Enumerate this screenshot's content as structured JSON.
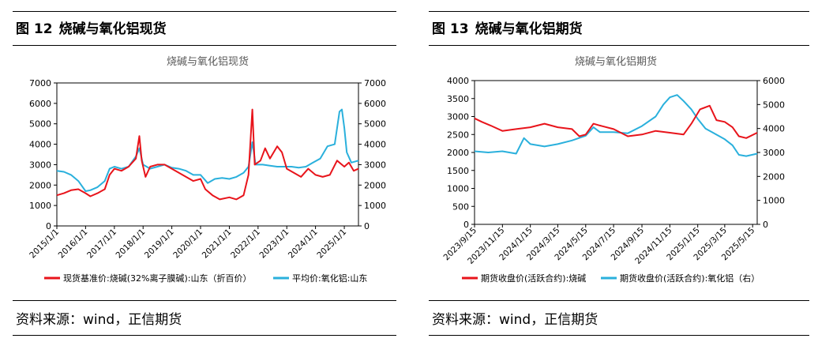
{
  "panels": [
    {
      "fig_num": "图 12",
      "fig_title": "烧碱与氧化铝现货",
      "source": "资料来源：wind，正信期货"
    },
    {
      "fig_num": "图 13",
      "fig_title": "烧碱与氧化铝期货",
      "source": "资料来源：wind，正信期货"
    }
  ],
  "chart_data": [
    {
      "type": "line",
      "title": "烧碱与氧化铝现货",
      "x_axis": "date",
      "xticks": [
        "2015/1/1",
        "2016/1/1",
        "2017/1/1",
        "2018/1/1",
        "2019/1/1",
        "2020/1/1",
        "2021/1/1",
        "2022/1/1",
        "2023/1/1",
        "2024/1/1",
        "2025/1/1"
      ],
      "x_range": [
        "2015/1/1",
        "2025/6/30"
      ],
      "ylim_left": [
        0,
        7000
      ],
      "yticks_left": [
        "0",
        "1000",
        "2000",
        "3000",
        "4000",
        "5000",
        "6000",
        "7000"
      ],
      "ylim_right": [
        0,
        7000
      ],
      "yticks_right": [
        "0",
        "1000",
        "2000",
        "3000",
        "4000",
        "5000",
        "6000",
        "7000"
      ],
      "grid": false,
      "legend_position": "bottom",
      "colors": {
        "series1": "#e8141b",
        "series2": "#2ab0dc"
      },
      "series": [
        {
          "name": "现货基准价:烧碱(32%离子膜碱):山东（折百价）",
          "axis": "left",
          "points": [
            [
              "2015/1/1",
              1500
            ],
            [
              "2015/4/1",
              1600
            ],
            [
              "2015/7/1",
              1750
            ],
            [
              "2015/10/1",
              1800
            ],
            [
              "2016/1/1",
              1600
            ],
            [
              "2016/3/1",
              1450
            ],
            [
              "2016/6/1",
              1600
            ],
            [
              "2016/9/1",
              1800
            ],
            [
              "2016/11/1",
              2500
            ],
            [
              "2017/1/1",
              2800
            ],
            [
              "2017/4/1",
              2700
            ],
            [
              "2017/7/1",
              2900
            ],
            [
              "2017/10/1",
              3300
            ],
            [
              "2017/11/15",
              4400
            ],
            [
              "2017/12/15",
              3200
            ],
            [
              "2018/2/1",
              2400
            ],
            [
              "2018/4/1",
              2900
            ],
            [
              "2018/7/1",
              3000
            ],
            [
              "2018/10/1",
              3000
            ],
            [
              "2019/1/1",
              2800
            ],
            [
              "2019/4/1",
              2600
            ],
            [
              "2019/7/1",
              2400
            ],
            [
              "2019/10/1",
              2200
            ],
            [
              "2020/1/1",
              2300
            ],
            [
              "2020/3/1",
              1800
            ],
            [
              "2020/6/1",
              1500
            ],
            [
              "2020/9/1",
              1300
            ],
            [
              "2021/1/1",
              1400
            ],
            [
              "2021/4/1",
              1300
            ],
            [
              "2021/7/1",
              1500
            ],
            [
              "2021/9/1",
              2500
            ],
            [
              "2021/10/20",
              5700
            ],
            [
              "2021/11/20",
              3000
            ],
            [
              "2022/2/1",
              3200
            ],
            [
              "2022/4/1",
              3800
            ],
            [
              "2022/6/1",
              3300
            ],
            [
              "2022/9/1",
              3900
            ],
            [
              "2022/11/1",
              3600
            ],
            [
              "2023/1/1",
              2800
            ],
            [
              "2023/4/1",
              2600
            ],
            [
              "2023/7/1",
              2400
            ],
            [
              "2023/10/1",
              2800
            ],
            [
              "2024/1/1",
              2500
            ],
            [
              "2024/4/1",
              2400
            ],
            [
              "2024/7/1",
              2500
            ],
            [
              "2024/10/1",
              3200
            ],
            [
              "2025/1/1",
              2900
            ],
            [
              "2025/3/1",
              3100
            ],
            [
              "2025/5/1",
              2700
            ],
            [
              "2025/6/30",
              2800
            ]
          ]
        },
        {
          "name": "平均价:氧化铝:山东",
          "axis": "right",
          "points": [
            [
              "2015/1/1",
              2700
            ],
            [
              "2015/4/1",
              2650
            ],
            [
              "2015/7/1",
              2500
            ],
            [
              "2015/10/1",
              2200
            ],
            [
              "2016/1/1",
              1700
            ],
            [
              "2016/3/1",
              1750
            ],
            [
              "2016/6/1",
              1900
            ],
            [
              "2016/9/1",
              2200
            ],
            [
              "2016/11/1",
              2800
            ],
            [
              "2017/1/1",
              2900
            ],
            [
              "2017/4/1",
              2800
            ],
            [
              "2017/7/1",
              2900
            ],
            [
              "2017/10/1",
              3400
            ],
            [
              "2017/11/15",
              3800
            ],
            [
              "2018/1/1",
              3000
            ],
            [
              "2018/4/1",
              2800
            ],
            [
              "2018/7/1",
              2900
            ],
            [
              "2018/10/1",
              3000
            ],
            [
              "2019/1/1",
              2850
            ],
            [
              "2019/4/1",
              2800
            ],
            [
              "2019/7/1",
              2700
            ],
            [
              "2019/10/1",
              2500
            ],
            [
              "2020/1/1",
              2500
            ],
            [
              "2020/4/1",
              2100
            ],
            [
              "2020/7/1",
              2300
            ],
            [
              "2020/10/1",
              2350
            ],
            [
              "2021/1/1",
              2300
            ],
            [
              "2021/4/1",
              2400
            ],
            [
              "2021/7/1",
              2600
            ],
            [
              "2021/9/1",
              2900
            ],
            [
              "2021/10/20",
              4100
            ],
            [
              "2021/12/1",
              3000
            ],
            [
              "2022/3/1",
              3000
            ],
            [
              "2022/6/1",
              2950
            ],
            [
              "2022/9/1",
              2900
            ],
            [
              "2022/12/1",
              2900
            ],
            [
              "2023/3/1",
              2900
            ],
            [
              "2023/6/1",
              2850
            ],
            [
              "2023/9/1",
              2900
            ],
            [
              "2023/12/1",
              3100
            ],
            [
              "2024/3/1",
              3300
            ],
            [
              "2024/6/1",
              3900
            ],
            [
              "2024/9/1",
              4000
            ],
            [
              "2024/11/1",
              5600
            ],
            [
              "2024/12/1",
              5700
            ],
            [
              "2025/1/1",
              4800
            ],
            [
              "2025/2/1",
              3600
            ],
            [
              "2025/4/1",
              3100
            ],
            [
              "2025/6/30",
              3200
            ]
          ]
        }
      ]
    },
    {
      "type": "line",
      "title": "烧碱与氧化铝期货",
      "x_axis": "date",
      "xticks": [
        "2023/9/15",
        "2023/11/15",
        "2024/1/15",
        "2024/3/15",
        "2024/5/15",
        "2024/7/15",
        "2024/9/15",
        "2024/11/15",
        "2025/1/15",
        "2025/3/15",
        "2025/5/15"
      ],
      "x_range": [
        "2023/9/15",
        "2025/5/25"
      ],
      "ylim_left": [
        0,
        4000
      ],
      "yticks_left": [
        "0",
        "500",
        "1000",
        "1500",
        "2000",
        "2500",
        "3000",
        "3500",
        "4000"
      ],
      "ylim_right": [
        0,
        6000
      ],
      "yticks_right": [
        "0",
        "1000",
        "2000",
        "3000",
        "4000",
        "5000",
        "6000"
      ],
      "grid": false,
      "legend_position": "bottom",
      "colors": {
        "series1": "#e8141b",
        "series2": "#2ab0dc"
      },
      "series": [
        {
          "name": "期货收盘价(活跃合约):烧碱",
          "axis": "left",
          "points": [
            [
              "2023/9/15",
              2950
            ],
            [
              "2023/10/1",
              2850
            ],
            [
              "2023/10/20",
              2750
            ],
            [
              "2023/11/15",
              2600
            ],
            [
              "2023/12/15",
              2650
            ],
            [
              "2024/1/15",
              2700
            ],
            [
              "2024/2/15",
              2800
            ],
            [
              "2024/3/15",
              2700
            ],
            [
              "2024/4/15",
              2650
            ],
            [
              "2024/5/1",
              2450
            ],
            [
              "2024/5/15",
              2500
            ],
            [
              "2024/6/1",
              2800
            ],
            [
              "2024/6/15",
              2750
            ],
            [
              "2024/7/15",
              2650
            ],
            [
              "2024/8/15",
              2450
            ],
            [
              "2024/9/15",
              2500
            ],
            [
              "2024/10/15",
              2600
            ],
            [
              "2024/11/15",
              2550
            ],
            [
              "2024/12/15",
              2500
            ],
            [
              "2025/1/1",
              2800
            ],
            [
              "2025/1/20",
              3200
            ],
            [
              "2025/2/10",
              3300
            ],
            [
              "2025/2/25",
              2900
            ],
            [
              "2025/3/15",
              2850
            ],
            [
              "2025/4/1",
              2700
            ],
            [
              "2025/4/15",
              2450
            ],
            [
              "2025/5/1",
              2400
            ],
            [
              "2025/5/25",
              2550
            ]
          ]
        },
        {
          "name": "期货收盘价(活跃合约):氧化铝（右）",
          "axis": "right",
          "points": [
            [
              "2023/9/15",
              3050
            ],
            [
              "2023/10/15",
              3000
            ],
            [
              "2023/11/15",
              3050
            ],
            [
              "2023/12/15",
              2950
            ],
            [
              "2024/1/1",
              3600
            ],
            [
              "2024/1/15",
              3350
            ],
            [
              "2024/2/15",
              3250
            ],
            [
              "2024/3/15",
              3350
            ],
            [
              "2024/4/15",
              3500
            ],
            [
              "2024/5/15",
              3700
            ],
            [
              "2024/6/1",
              4050
            ],
            [
              "2024/6/15",
              3850
            ],
            [
              "2024/7/15",
              3850
            ],
            [
              "2024/8/15",
              3800
            ],
            [
              "2024/9/15",
              4100
            ],
            [
              "2024/10/15",
              4500
            ],
            [
              "2024/11/1",
              5000
            ],
            [
              "2024/11/15",
              5300
            ],
            [
              "2024/12/1",
              5400
            ],
            [
              "2024/12/15",
              5150
            ],
            [
              "2025/1/1",
              4800
            ],
            [
              "2025/1/15",
              4400
            ],
            [
              "2025/2/1",
              4000
            ],
            [
              "2025/2/15",
              3850
            ],
            [
              "2025/3/1",
              3700
            ],
            [
              "2025/3/15",
              3550
            ],
            [
              "2025/4/1",
              3300
            ],
            [
              "2025/4/15",
              2900
            ],
            [
              "2025/5/1",
              2850
            ],
            [
              "2025/5/25",
              2950
            ]
          ]
        }
      ]
    }
  ]
}
